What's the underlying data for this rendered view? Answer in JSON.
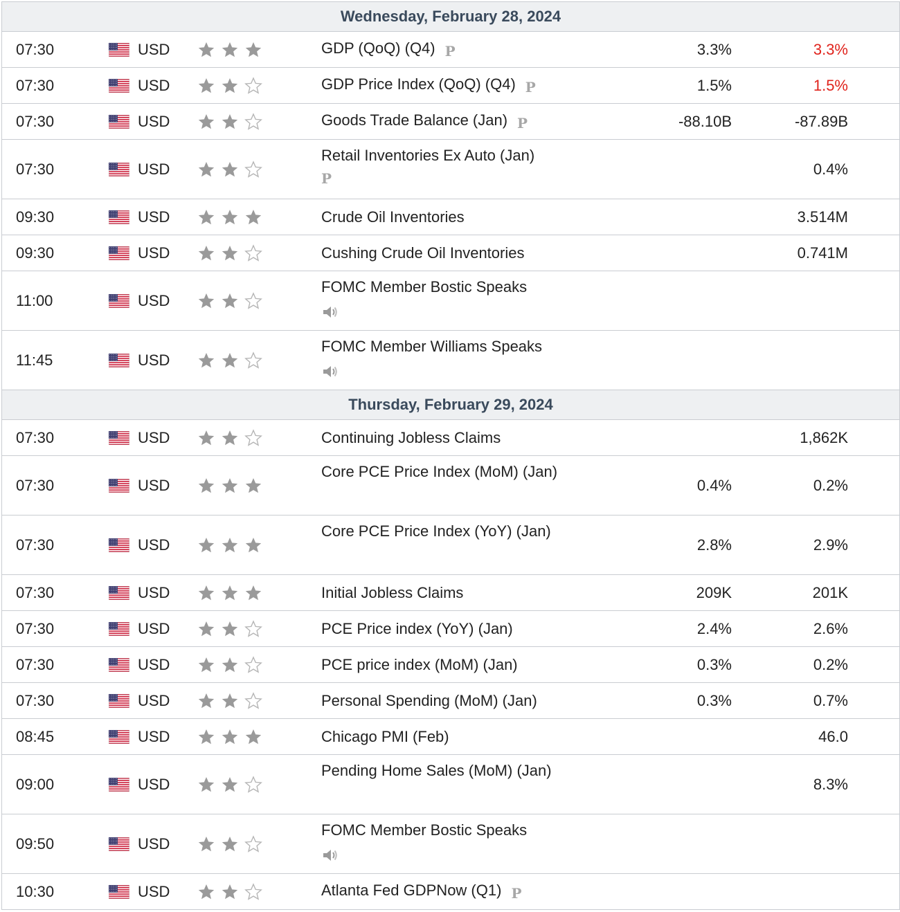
{
  "colors": {
    "border": "#c9ccd1",
    "header_bg": "#eef0f2",
    "star_filled": "#9a9a9a",
    "star_empty": "#b5b5b5",
    "red": "#e0231c"
  },
  "days": [
    {
      "date": "Wednesday, February 28, 2024",
      "events": [
        {
          "time": "07:30",
          "currency": "USD",
          "stars": 3,
          "name": "GDP (QoQ) (Q4)",
          "tag": "P",
          "tag_inline": true,
          "col1": "3.3%",
          "col2": "3.3%",
          "col2_red": true,
          "tall": false
        },
        {
          "time": "07:30",
          "currency": "USD",
          "stars": 2,
          "name": "GDP Price Index (QoQ) (Q4)",
          "tag": "P",
          "tag_inline": true,
          "col1": "1.5%",
          "col2": "1.5%",
          "col2_red": true,
          "tall": false
        },
        {
          "time": "07:30",
          "currency": "USD",
          "stars": 2,
          "name": "Goods Trade Balance (Jan)",
          "tag": "P",
          "tag_inline": true,
          "col1": "-88.10B",
          "col2": "-87.89B",
          "col2_red": false,
          "tall": false
        },
        {
          "time": "07:30",
          "currency": "USD",
          "stars": 2,
          "name": "Retail Inventories Ex Auto (Jan)",
          "tag": "P",
          "tag_inline": false,
          "col1": "",
          "col2": "0.4%",
          "col2_red": false,
          "tall": true
        },
        {
          "time": "09:30",
          "currency": "USD",
          "stars": 3,
          "name": "Crude Oil Inventories",
          "tag": "",
          "col1": "",
          "col2": "3.514M",
          "col2_red": false,
          "tall": false
        },
        {
          "time": "09:30",
          "currency": "USD",
          "stars": 2,
          "name": "Cushing Crude Oil Inventories",
          "tag": "",
          "col1": "",
          "col2": "0.741M",
          "col2_red": false,
          "tall": false
        },
        {
          "time": "11:00",
          "currency": "USD",
          "stars": 2,
          "name": "FOMC Member Bostic Speaks",
          "speaker": true,
          "col1": "",
          "col2": "",
          "tall": true
        },
        {
          "time": "11:45",
          "currency": "USD",
          "stars": 2,
          "name": "FOMC Member Williams Speaks",
          "speaker": true,
          "col1": "",
          "col2": "",
          "tall": true
        }
      ]
    },
    {
      "date": "Thursday, February 29, 2024",
      "events": [
        {
          "time": "07:30",
          "currency": "USD",
          "stars": 2,
          "name": "Continuing Jobless Claims",
          "col1": "",
          "col2": "1,862K",
          "tall": false
        },
        {
          "time": "07:30",
          "currency": "USD",
          "stars": 3,
          "name": "Core PCE Price Index (MoM) (Jan)",
          "col1": "0.4%",
          "col2": "0.2%",
          "tall": true
        },
        {
          "time": "07:30",
          "currency": "USD",
          "stars": 3,
          "name": "Core PCE Price Index (YoY) (Jan)",
          "col1": "2.8%",
          "col2": "2.9%",
          "tall": true
        },
        {
          "time": "07:30",
          "currency": "USD",
          "stars": 3,
          "name": "Initial Jobless Claims",
          "col1": "209K",
          "col2": "201K",
          "tall": false
        },
        {
          "time": "07:30",
          "currency": "USD",
          "stars": 2,
          "name": "PCE Price index (YoY) (Jan)",
          "col1": "2.4%",
          "col2": "2.6%",
          "tall": false
        },
        {
          "time": "07:30",
          "currency": "USD",
          "stars": 2,
          "name": "PCE price index (MoM) (Jan)",
          "col1": "0.3%",
          "col2": "0.2%",
          "tall": false
        },
        {
          "time": "07:30",
          "currency": "USD",
          "stars": 2,
          "name": "Personal Spending (MoM) (Jan)",
          "col1": "0.3%",
          "col2": "0.7%",
          "tall": false
        },
        {
          "time": "08:45",
          "currency": "USD",
          "stars": 3,
          "name": "Chicago PMI (Feb)",
          "col1": "",
          "col2": "46.0",
          "tall": false
        },
        {
          "time": "09:00",
          "currency": "USD",
          "stars": 2,
          "name": "Pending Home Sales (MoM) (Jan)",
          "col1": "",
          "col2": "8.3%",
          "tall": true
        },
        {
          "time": "09:50",
          "currency": "USD",
          "stars": 2,
          "name": "FOMC Member Bostic Speaks",
          "speaker": true,
          "col1": "",
          "col2": "",
          "tall": true
        },
        {
          "time": "10:30",
          "currency": "USD",
          "stars": 2,
          "name": "Atlanta Fed GDPNow (Q1)",
          "tag": "P",
          "tag_inline": true,
          "col1": "",
          "col2": "",
          "tall": false
        }
      ]
    }
  ]
}
